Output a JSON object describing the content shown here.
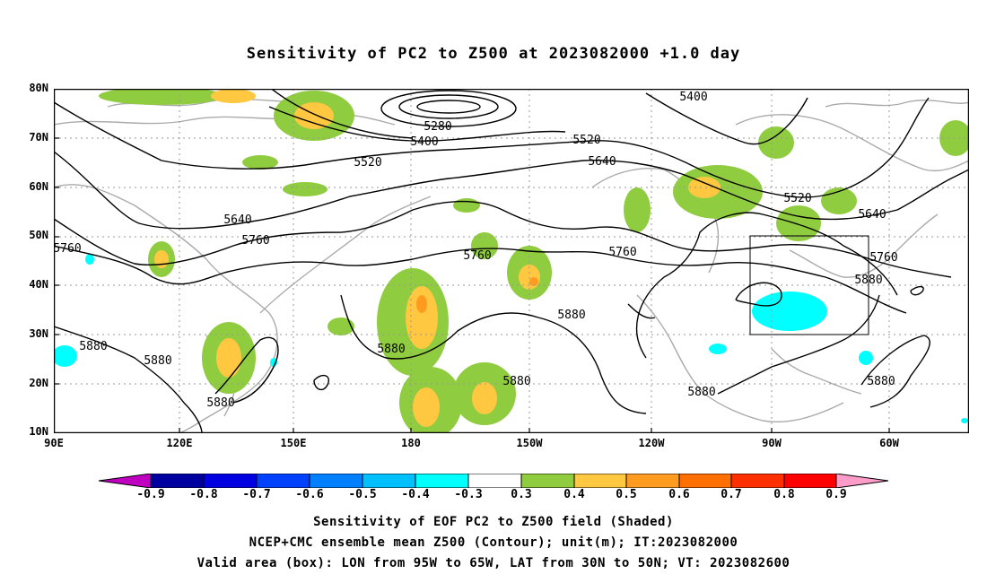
{
  "title": "Sensitivity of PC2 to Z500 at 2023082000 +1.0 day",
  "lat_labels": [
    "80N",
    "70N",
    "60N",
    "50N",
    "40N",
    "30N",
    "20N",
    "10N"
  ],
  "lon_labels": [
    "90E",
    "120E",
    "150E",
    "180",
    "150W",
    "120W",
    "90W",
    "60W"
  ],
  "contour_labels": [
    "5280",
    "5400",
    "5400",
    "5520",
    "5520",
    "5520",
    "5640",
    "5640",
    "5640",
    "5760",
    "5760",
    "5760",
    "5760",
    "5760",
    "5880",
    "5880",
    "5880",
    "5880",
    "5880",
    "5880",
    "5880",
    "5880",
    "5880"
  ],
  "valid_box": {
    "lon_from": "95W",
    "lon_to": "65W",
    "lat_from": "30N",
    "lat_to": "50N"
  },
  "colorbar": {
    "labels": [
      "-0.9",
      "-0.8",
      "-0.7",
      "-0.6",
      "-0.5",
      "-0.4",
      "-0.3",
      "0.3",
      "0.4",
      "0.5",
      "0.6",
      "0.7",
      "0.8",
      "0.9"
    ],
    "colors": [
      "#c000c0",
      "#0000a0",
      "#0000e0",
      "#0040ff",
      "#0080ff",
      "#00c0ff",
      "#00ffff",
      "#ffffff",
      "#90cc40",
      "#ffc840",
      "#ff9c20",
      "#ff7000",
      "#ff3000",
      "#ff0000",
      "#ff9cc8"
    ]
  },
  "caption": {
    "line1": "Sensitivity of EOF PC2 to Z500 field (Shaded)",
    "line2": "NCEP+CMC ensemble mean Z500 (Contour); unit(m); IT:2023082000",
    "line3": "Valid area (box): LON from 95W to 65W, LAT from 30N to 50N; VT: 2023082600"
  }
}
